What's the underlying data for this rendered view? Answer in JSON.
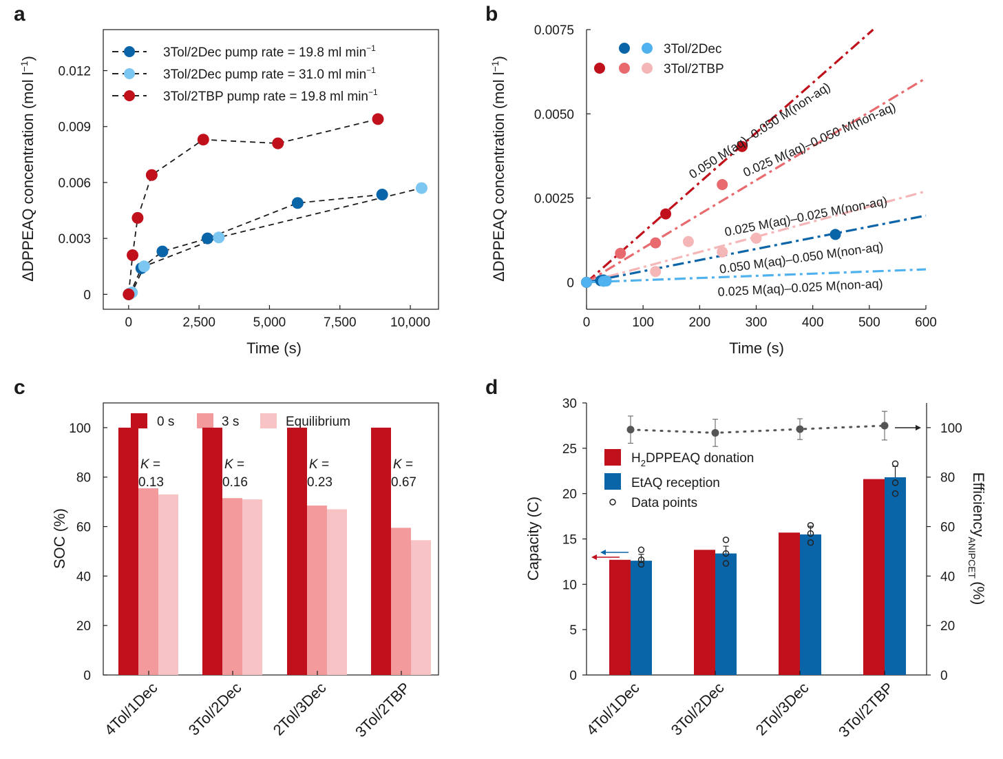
{
  "colors": {
    "dark_blue": "#0a64a8",
    "light_blue": "#7cc6f2",
    "mid_blue": "#4fb2ee",
    "dark_red": "#c0101b",
    "mid_red": "#e86a6e",
    "light_red": "#f5b6b8",
    "bar_red": "#c0101b",
    "bar_pink": "#f39a9c",
    "bar_lightpink": "#f8c3c4",
    "bar_blue": "#0a64a8",
    "grey": "#555555"
  },
  "chart_data": [
    {
      "panel": "a",
      "type": "scatter",
      "xlabel": "Time (s)",
      "ylabel": "ΔDPPEAQ concentration (mol l⁻¹)",
      "xlim": [
        -900,
        11000
      ],
      "ylim": [
        -0.0008,
        0.0142
      ],
      "xticks": [
        0,
        2500,
        5000,
        7500,
        10000
      ],
      "xtick_labels": [
        "0",
        "2,500",
        "5,000",
        "7,500",
        "10,000"
      ],
      "yticks": [
        0,
        0.003,
        0.006,
        0.009,
        0.012
      ],
      "ytick_labels": [
        "0",
        "0.003",
        "0.006",
        "0.009",
        "0.012"
      ],
      "series": [
        {
          "name": "3Tol/2Dec pump rate = 19.8 ml min⁻¹",
          "color": "#0a64a8",
          "x": [
            0,
            60,
            450,
            1200,
            2800,
            6000,
            9000
          ],
          "y": [
            0,
            5e-05,
            0.0014,
            0.0023,
            0.003,
            0.0049,
            0.00535
          ]
        },
        {
          "name": "3Tol/2Dec pump rate = 31.0 ml min⁻¹",
          "color": "#7cc6f2",
          "x": [
            0,
            120,
            550,
            3200,
            10400
          ],
          "y": [
            0,
            0.0001,
            0.0015,
            0.00305,
            0.0057
          ]
        },
        {
          "name": "3Tol/2TBP pump rate = 19.8 ml min⁻¹",
          "color": "#c0101b",
          "x": [
            0,
            140,
            320,
            820,
            2650,
            5300,
            8850
          ],
          "y": [
            0,
            0.0021,
            0.0041,
            0.0064,
            0.0083,
            0.0081,
            0.0094
          ]
        }
      ]
    },
    {
      "panel": "b",
      "type": "scatter",
      "xlabel": "Time (s)",
      "ylabel": "ΔDPPEAQ concentration (mol l⁻¹)",
      "xlim": [
        0,
        600
      ],
      "ylim": [
        -0.0008,
        0.0075
      ],
      "xticks": [
        0,
        100,
        200,
        300,
        400,
        500,
        600
      ],
      "xtick_labels": [
        "0",
        "100",
        "200",
        "300",
        "400",
        "500",
        "600"
      ],
      "yticks": [
        0,
        0.0025,
        0.005,
        0.0075
      ],
      "ytick_labels": [
        "0",
        "0.0025",
        "0.0050",
        "0.0075"
      ],
      "legend": [
        "3Tol/2Dec",
        "3Tol/2TBP"
      ],
      "series": [
        {
          "name": "3Tol/2TBP 0.050 M(aq)–0.050 M(non-aq)",
          "color": "#c0101b",
          "slope": 1.48e-05,
          "x": [
            0,
            140,
            275
          ],
          "y": [
            0,
            0.00203,
            0.00403
          ]
        },
        {
          "name": "3Tol/2TBP 0.025 M(aq)–0.050 M(non-aq)",
          "color": "#e86a6e",
          "slope": 1.01e-05,
          "x": [
            0,
            60,
            122,
            240
          ],
          "y": [
            0,
            0.00086,
            0.00117,
            0.0029
          ]
        },
        {
          "name": "3Tol/2TBP 0.025 M(aq)–0.025 M(non-aq)",
          "color": "#f5b6b8",
          "slope": 4.5e-06,
          "x": [
            0,
            122,
            180,
            240,
            300
          ],
          "y": [
            0,
            0.00032,
            0.00121,
            0.0009,
            0.00131
          ]
        },
        {
          "name": "3Tol/2Dec 0.050 M(aq)–0.050 M(non-aq)",
          "color": "#0a64a8",
          "slope": 3.3e-06,
          "x": [
            0,
            25,
            30,
            440
          ],
          "y": [
            0,
            5e-05,
            7e-05,
            0.00142
          ]
        },
        {
          "name": "3Tol/2Dec 0.025 M(aq)–0.025 M(non-aq)",
          "color": "#4fb2ee",
          "slope": 6.4e-07,
          "x": [
            0,
            30,
            35
          ],
          "y": [
            0,
            3e-05,
            4e-05
          ]
        }
      ],
      "annotations": [
        "0.050 M(aq)–0.050 M(non-aq)",
        "0.025 M(aq)–0.050 M(non-aq)",
        "0.025 M(aq)–0.025 M(non-aq)",
        "0.050 M(aq)–0.050 M(non-aq)",
        "0.025 M(aq)–0.025 M(non-aq)"
      ]
    },
    {
      "panel": "c",
      "type": "bar",
      "ylabel": "SOC (%)",
      "ylim": [
        0,
        110
      ],
      "yticks": [
        0,
        20,
        40,
        60,
        80,
        100
      ],
      "categories": [
        "4Tol/1Dec",
        "3Tol/2Dec",
        "2Tol/3Dec",
        "3Tol/2TBP"
      ],
      "series": [
        {
          "name": "0 s",
          "values": [
            100,
            100,
            100,
            100
          ]
        },
        {
          "name": "3 s",
          "values": [
            75.5,
            71.5,
            68.5,
            59.5
          ]
        },
        {
          "name": "Equilibrium",
          "values": [
            73,
            71,
            67,
            54.5
          ]
        }
      ],
      "k_label": "K",
      "k_values": [
        "0.13",
        "0.16",
        "0.23",
        "0.67"
      ]
    },
    {
      "panel": "d",
      "type": "bar",
      "ylabel_left": "Capacity (C)",
      "ylabel_right": "Efficiency",
      "ylabel_right_sub": "ANIPCET",
      "ylabel_right_unit": "(%)",
      "ylim_left": [
        0,
        30
      ],
      "yticks_left": [
        0,
        5,
        10,
        15,
        20,
        25,
        30
      ],
      "ylim_right": [
        0,
        110
      ],
      "yticks_right": [
        0,
        20,
        40,
        60,
        80,
        100
      ],
      "categories": [
        "4Tol/1Dec",
        "3Tol/2Dec",
        "2Tol/3Dec",
        "3Tol/2TBP"
      ],
      "series": [
        {
          "name": "H₂DPPEAQ donation",
          "values": [
            12.7,
            13.8,
            15.7,
            21.6
          ]
        },
        {
          "name": "EtAQ reception",
          "values": [
            12.6,
            13.4,
            15.5,
            21.8
          ],
          "errors": [
            0.7,
            0.8,
            0.9,
            1.2
          ],
          "points": [
            [
              13.8,
              12.7,
              12.2
            ],
            [
              14.9,
              13.4,
              12.3
            ],
            [
              16.5,
              15.6,
              14.6
            ],
            [
              23.3,
              21.2,
              20.0
            ]
          ]
        },
        {
          "name": "Efficiency",
          "axis": "right",
          "values": [
            99.2,
            97.9,
            99.4,
            100.8
          ],
          "errors": [
            5.5,
            5.5,
            4.2,
            5.8
          ]
        }
      ],
      "legend_h2_prefix": "H",
      "legend_h2_sub": "2",
      "legend_h2_rest": "DPPEAQ donation",
      "legend_etaq": "EtAQ reception",
      "legend_points": "Data points"
    }
  ],
  "panels": {
    "a": {
      "letter": "a",
      "legend": [
        "3Tol/2Dec pump rate = 19.8 ml min",
        "3Tol/2Dec pump rate = 31.0 ml min",
        "3Tol/2TBP pump rate = 19.8 ml min"
      ],
      "unit_sup": "−1"
    },
    "b": {
      "letter": "b"
    },
    "c": {
      "letter": "c"
    },
    "d": {
      "letter": "d"
    }
  },
  "axis_text": {
    "conc_prefix": "ΔDPPEAQ concentration (mol l",
    "conc_sup": "−1",
    "conc_suffix": ")"
  }
}
